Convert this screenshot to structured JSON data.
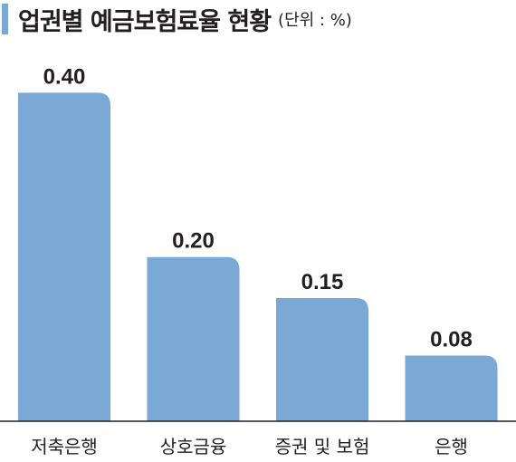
{
  "header": {
    "title": "업권별 예금보험료율 현황",
    "unit": "(단위 : %)",
    "accent_color": "#7aa9d6"
  },
  "chart_data": {
    "type": "bar",
    "title": "업권별 예금보험료율 현황",
    "unit": "(단위 : %)",
    "categories": [
      "저축은행",
      "상호금융",
      "증권 및 보험",
      "은행"
    ],
    "values": [
      0.4,
      0.2,
      0.15,
      0.08
    ],
    "value_labels": [
      "0.40",
      "0.20",
      "0.15",
      "0.08"
    ],
    "ylim": [
      0,
      0.46
    ],
    "bar_color": "#7aa9d6",
    "grid": false,
    "legend": "none"
  }
}
